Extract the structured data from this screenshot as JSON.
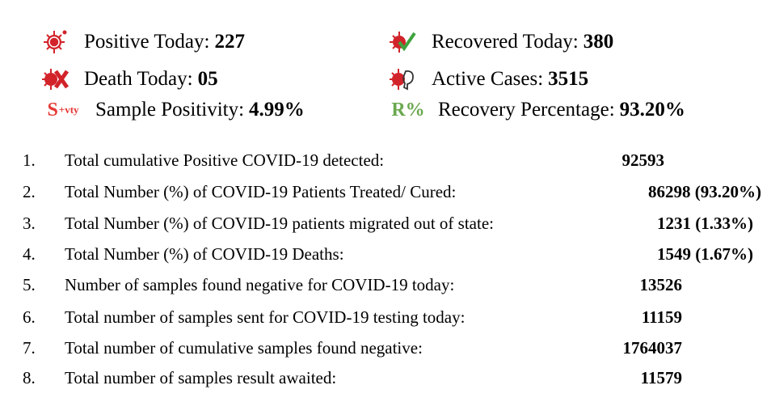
{
  "colors": {
    "virus_red": "#d2232a",
    "check_green": "#3fa33f",
    "recovery_green": "#6aa84f",
    "sample_red": "#e53935"
  },
  "summary": {
    "positive_today": {
      "label": "Positive Today:",
      "value": "227",
      "icon": "virus-icon"
    },
    "recovered_today": {
      "label": "Recovered Today:",
      "value": "380",
      "icon": "virus-check-icon"
    },
    "death_today": {
      "label": "Death Today:",
      "value": "05",
      "icon": "virus-cross-icon"
    },
    "active_cases": {
      "label": "Active Cases:",
      "value": "3515",
      "icon": "virus-outline-icon"
    },
    "sample_positivity": {
      "label": "Sample Positivity:",
      "value": "4.99%",
      "icon_text": "S",
      "icon_sup": "+vty"
    },
    "recovery_percentage": {
      "label": "Recovery Percentage:",
      "value": "93.20%",
      "icon_text": "R%"
    }
  },
  "stats": [
    {
      "num": "1.",
      "label": "Total cumulative Positive COVID-19 detected:",
      "value": "92593"
    },
    {
      "num": "2.",
      "label": "Total Number (%) of COVID-19 Patients Treated/ Cured:",
      "value": "86298 (93.20%)"
    },
    {
      "num": "3.",
      "label": "Total Number (%) of COVID-19 patients migrated out of state:",
      "value": "1231 (1.33%)"
    },
    {
      "num": "4.",
      "label": "Total Number (%) of COVID-19 Deaths:",
      "value": "1549 (1.67%)"
    },
    {
      "num": "5.",
      "label": "Number of samples found negative for COVID-19 today:",
      "value": "13526"
    },
    {
      "num": "6.",
      "label": "Total number of samples sent for COVID-19 testing today:",
      "value": "11159"
    },
    {
      "num": "7.",
      "label": "Total number of cumulative samples found negative:",
      "value": "1764037"
    },
    {
      "num": "8.",
      "label": "Total number of samples result awaited:",
      "value": "11579"
    }
  ]
}
